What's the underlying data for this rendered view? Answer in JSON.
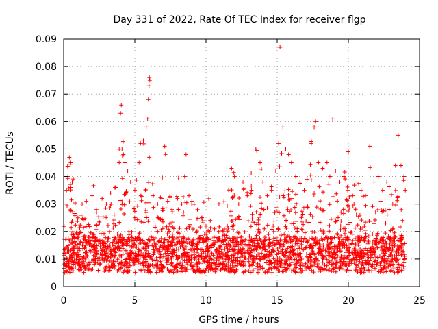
{
  "chart_data": {
    "type": "scatter",
    "title": "Day 331 of 2022, Rate Of TEC Index for receiver flgp",
    "xlabel": "GPS time / hours",
    "ylabel": "ROTI / TECUs",
    "xlim": [
      0,
      25
    ],
    "ylim": [
      0,
      0.09
    ],
    "x_ticks": [
      "0",
      "5",
      "10",
      "15",
      "20",
      "25"
    ],
    "x_tick_values": [
      0,
      5,
      10,
      15,
      20,
      25
    ],
    "y_ticks": [
      "0",
      "0.01",
      "0.02",
      "0.03",
      "0.04",
      "0.05",
      "0.06",
      "0.07",
      "0.08",
      "0.09"
    ],
    "y_tick_values": [
      0,
      0.01,
      0.02,
      0.03,
      0.04,
      0.05,
      0.06,
      0.07,
      0.08,
      0.09
    ],
    "grid": true,
    "marker": "plus",
    "color": "#ff0000",
    "series": [
      {
        "name": "ROTI",
        "x_range": [
          0,
          24
        ],
        "points": [
          [
            0.1,
            0.012
          ],
          [
            0.2,
            0.035
          ],
          [
            0.3,
            0.04
          ],
          [
            0.4,
            0.047
          ],
          [
            0.5,
            0.045
          ],
          [
            0.6,
            0.038
          ],
          [
            0.8,
            0.03
          ],
          [
            1.0,
            0.025
          ],
          [
            1.3,
            0.03
          ],
          [
            1.6,
            0.031
          ],
          [
            2.0,
            0.033
          ],
          [
            2.3,
            0.028
          ],
          [
            2.7,
            0.032
          ],
          [
            3.0,
            0.03
          ],
          [
            3.3,
            0.034
          ],
          [
            3.6,
            0.036
          ],
          [
            3.9,
            0.045
          ],
          [
            4.0,
            0.063
          ],
          [
            4.05,
            0.066
          ],
          [
            4.1,
            0.05
          ],
          [
            4.2,
            0.048
          ],
          [
            4.3,
            0.045
          ],
          [
            4.5,
            0.042
          ],
          [
            4.7,
            0.038
          ],
          [
            5.0,
            0.035
          ],
          [
            5.3,
            0.045
          ],
          [
            5.4,
            0.052
          ],
          [
            5.6,
            0.053
          ],
          [
            5.8,
            0.058
          ],
          [
            5.9,
            0.061
          ],
          [
            5.95,
            0.068
          ],
          [
            6.0,
            0.073
          ],
          [
            6.02,
            0.076
          ],
          [
            6.05,
            0.075
          ],
          [
            6.3,
            0.033
          ],
          [
            6.6,
            0.03
          ],
          [
            6.9,
            0.032
          ],
          [
            7.1,
            0.051
          ],
          [
            7.3,
            0.031
          ],
          [
            7.6,
            0.028
          ],
          [
            8.0,
            0.032
          ],
          [
            8.3,
            0.03
          ],
          [
            8.5,
            0.04
          ],
          [
            8.6,
            0.048
          ],
          [
            8.8,
            0.033
          ],
          [
            9.0,
            0.03
          ],
          [
            9.4,
            0.028
          ],
          [
            9.7,
            0.025
          ],
          [
            10.0,
            0.022
          ],
          [
            10.3,
            0.024
          ],
          [
            10.6,
            0.021
          ],
          [
            10.9,
            0.02
          ],
          [
            11.2,
            0.02
          ],
          [
            11.5,
            0.022
          ],
          [
            11.8,
            0.043
          ],
          [
            12.0,
            0.04
          ],
          [
            12.3,
            0.03
          ],
          [
            12.6,
            0.038
          ],
          [
            12.9,
            0.033
          ],
          [
            13.2,
            0.035
          ],
          [
            13.5,
            0.05
          ],
          [
            13.8,
            0.045
          ],
          [
            14.0,
            0.038
          ],
          [
            14.3,
            0.033
          ],
          [
            14.6,
            0.035
          ],
          [
            14.9,
            0.042
          ],
          [
            15.1,
            0.052
          ],
          [
            15.2,
            0.087
          ],
          [
            15.4,
            0.058
          ],
          [
            15.6,
            0.05
          ],
          [
            15.8,
            0.048
          ],
          [
            16.0,
            0.045
          ],
          [
            16.3,
            0.04
          ],
          [
            16.6,
            0.038
          ],
          [
            16.9,
            0.035
          ],
          [
            17.1,
            0.039
          ],
          [
            17.4,
            0.052
          ],
          [
            17.6,
            0.058
          ],
          [
            17.7,
            0.06
          ],
          [
            17.9,
            0.045
          ],
          [
            18.2,
            0.043
          ],
          [
            18.5,
            0.045
          ],
          [
            18.7,
            0.04
          ],
          [
            18.9,
            0.061
          ],
          [
            19.1,
            0.042
          ],
          [
            19.4,
            0.038
          ],
          [
            19.7,
            0.04
          ],
          [
            20.0,
            0.049
          ],
          [
            20.3,
            0.033
          ],
          [
            20.6,
            0.038
          ],
          [
            20.9,
            0.035
          ],
          [
            21.2,
            0.033
          ],
          [
            21.5,
            0.051
          ],
          [
            21.8,
            0.038
          ],
          [
            22.1,
            0.04
          ],
          [
            22.4,
            0.035
          ],
          [
            22.7,
            0.038
          ],
          [
            23.0,
            0.042
          ],
          [
            23.3,
            0.044
          ],
          [
            23.5,
            0.055
          ],
          [
            23.7,
            0.044
          ],
          [
            23.9,
            0.04
          ],
          [
            24.0,
            0.035
          ]
        ]
      }
    ]
  }
}
